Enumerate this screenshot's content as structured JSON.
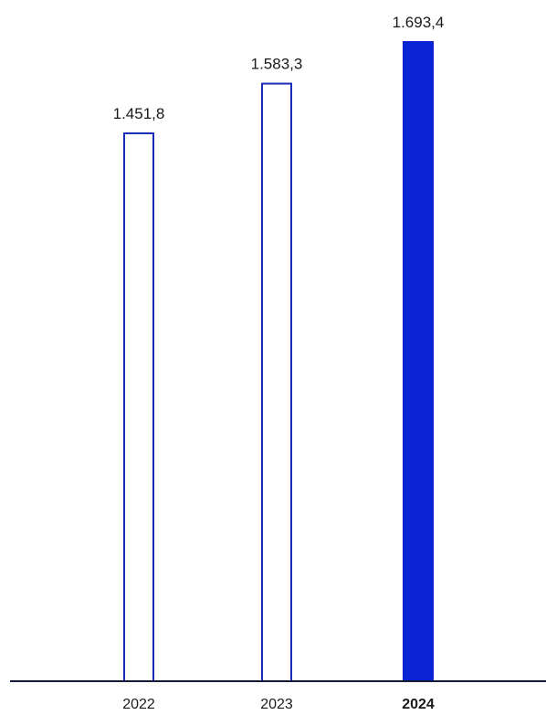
{
  "chart_data": {
    "type": "bar",
    "categories": [
      "2022",
      "2023",
      "2024"
    ],
    "values": [
      1451.8,
      1583.3,
      1693.4
    ],
    "value_labels": [
      "1.451,8",
      "1.583,3",
      "1.693,4"
    ],
    "highlight_category": "2024",
    "title": "",
    "xlabel": "",
    "ylabel": "",
    "ylim": [
      0,
      1693.4
    ],
    "grid": false,
    "legend": "none",
    "colors": {
      "bar_outline": "#1a2db8",
      "bar_highlight_fill": "#0a24d4",
      "bar_fill": "#ffffff",
      "axis_line": "#141a3d",
      "text": "#1a1a1a"
    }
  }
}
